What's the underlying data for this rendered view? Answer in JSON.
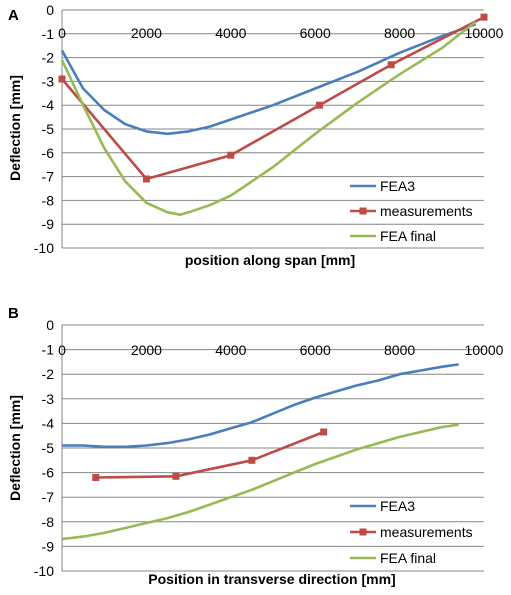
{
  "colors": {
    "fea3": "#4a7ebb",
    "measurements": "#be4b48",
    "fea_final": "#98b954",
    "grid": "#868686"
  },
  "chart_data": [
    {
      "panel_label": "A",
      "type": "line",
      "xlabel": "position along span [mm]",
      "ylabel": "Deflection [mm]",
      "xlim": [
        0,
        10000
      ],
      "ylim": [
        -10,
        0
      ],
      "x_ticks": [
        "0",
        "2000",
        "4000",
        "6000",
        "8000",
        "10000"
      ],
      "y_ticks": [
        "0",
        "-1",
        "-2",
        "-3",
        "-4",
        "-5",
        "-6",
        "-7",
        "-8",
        "-9",
        "-10"
      ],
      "grid": true,
      "legend_position": "bottom-right",
      "series": [
        {
          "name": "FEA3",
          "color": "#4a7ebb",
          "markers": false,
          "x": [
            0,
            250,
            500,
            1000,
            1500,
            2000,
            2500,
            3000,
            3500,
            4000,
            5000,
            6000,
            7000,
            8000,
            9000,
            9800
          ],
          "y": [
            -1.7,
            -2.5,
            -3.3,
            -4.2,
            -4.8,
            -5.1,
            -5.2,
            -5.1,
            -4.9,
            -4.6,
            -4.0,
            -3.3,
            -2.6,
            -1.8,
            -1.1,
            -0.6
          ]
        },
        {
          "name": "measurements",
          "color": "#be4b48",
          "markers": true,
          "x": [
            0,
            2000,
            4000,
            6100,
            7800,
            10000
          ],
          "y": [
            -2.9,
            -7.1,
            -6.1,
            -4.0,
            -2.3,
            -0.3
          ]
        },
        {
          "name": "FEA final",
          "color": "#98b954",
          "markers": false,
          "x": [
            0,
            500,
            1000,
            1500,
            2000,
            2500,
            2800,
            3000,
            3500,
            4000,
            5000,
            6000,
            7000,
            8000,
            9000,
            9800
          ],
          "y": [
            -2.1,
            -4.0,
            -5.8,
            -7.2,
            -8.1,
            -8.5,
            -8.6,
            -8.5,
            -8.2,
            -7.8,
            -6.6,
            -5.2,
            -3.9,
            -2.7,
            -1.6,
            -0.5
          ]
        }
      ]
    },
    {
      "panel_label": "B",
      "type": "line",
      "xlabel": "Position in transverse direction [mm]",
      "ylabel": "Deflection [mm]",
      "xlim": [
        0,
        10000
      ],
      "ylim": [
        -10,
        0
      ],
      "x_ticks": [
        "0",
        "2000",
        "4000",
        "6000",
        "8000",
        "10000"
      ],
      "y_ticks": [
        "0",
        "-1",
        "-2",
        "-3",
        "-4",
        "-5",
        "-6",
        "-7",
        "-8",
        "-9",
        "-10"
      ],
      "grid": true,
      "legend_position": "bottom-right",
      "series": [
        {
          "name": "FEA3",
          "color": "#4a7ebb",
          "markers": false,
          "x": [
            0,
            500,
            1000,
            1500,
            2000,
            2500,
            3000,
            3500,
            4000,
            4500,
            5000,
            5500,
            6000,
            6500,
            7000,
            7500,
            8000,
            8500,
            9000,
            9400
          ],
          "y": [
            -4.9,
            -4.9,
            -4.95,
            -4.95,
            -4.9,
            -4.8,
            -4.65,
            -4.45,
            -4.2,
            -3.95,
            -3.6,
            -3.25,
            -2.95,
            -2.7,
            -2.45,
            -2.25,
            -2.0,
            -1.85,
            -1.7,
            -1.6
          ]
        },
        {
          "name": "measurements",
          "color": "#be4b48",
          "markers": true,
          "x": [
            800,
            2700,
            4500,
            6200
          ],
          "y": [
            -6.2,
            -6.15,
            -5.5,
            -4.35
          ]
        },
        {
          "name": "FEA final",
          "color": "#98b954",
          "markers": false,
          "x": [
            0,
            500,
            1000,
            1500,
            2000,
            2500,
            3000,
            3500,
            4000,
            4500,
            5000,
            5500,
            6000,
            6500,
            7000,
            7500,
            8000,
            8500,
            9000,
            9400
          ],
          "y": [
            -8.7,
            -8.6,
            -8.45,
            -8.25,
            -8.05,
            -7.85,
            -7.6,
            -7.3,
            -7.0,
            -6.7,
            -6.35,
            -6.0,
            -5.65,
            -5.35,
            -5.05,
            -4.8,
            -4.55,
            -4.35,
            -4.15,
            -4.05
          ]
        }
      ]
    }
  ]
}
